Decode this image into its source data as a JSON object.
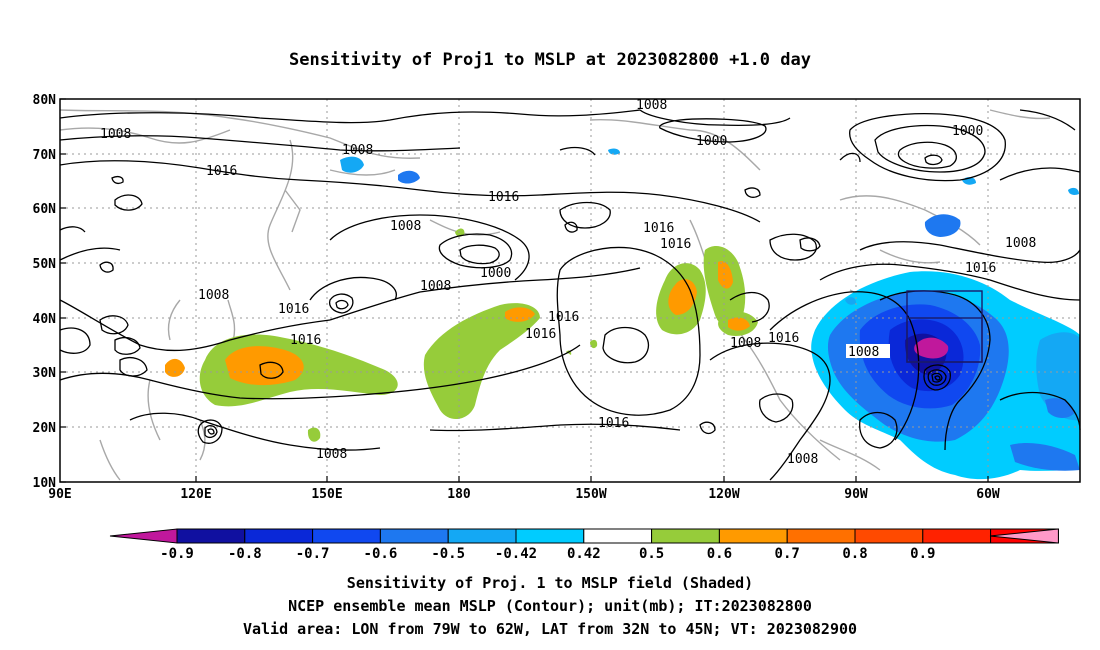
{
  "title": "Sensitivity of Proj1 to MSLP at 2023082800 +1.0 day",
  "lat_labels": [
    "80N",
    "70N",
    "60N",
    "50N",
    "40N",
    "30N",
    "20N",
    "10N"
  ],
  "lon_labels": [
    "90E",
    "120E",
    "150E",
    "180",
    "150W",
    "120W",
    "90W",
    "60W"
  ],
  "contour_labels": [
    "1008",
    "1008",
    "1008",
    "1016",
    "1016",
    "1008",
    "1000",
    "1008",
    "1000",
    "1016",
    "1016",
    "1016",
    "1016",
    "1008",
    "1016",
    "1000",
    "1008",
    "1016",
    "1016",
    "1016",
    "1008",
    "1016",
    "1008",
    "1016",
    "1008",
    "1008"
  ],
  "colorbar": {
    "colors": [
      "#c0189c",
      "#1010a0",
      "#0a28d8",
      "#1048f0",
      "#1e78f0",
      "#14a8f4",
      "#00ccff",
      "#ffffff",
      "#96cc3a",
      "#ff9a00",
      "#ff7000",
      "#ff4a00",
      "#ff2200",
      "#ff0000",
      "#ff99c8"
    ],
    "labels": [
      "-0.9",
      "-0.8",
      "-0.7",
      "-0.6",
      "-0.5",
      "-0.42",
      "0.42",
      "0.5",
      "0.6",
      "0.7",
      "0.8",
      "0.9"
    ]
  },
  "valid_box": {
    "lon_from": "79W",
    "lon_to": "62W",
    "lat_from": "32N",
    "lat_to": "45N"
  },
  "caption_line1": "Sensitivity of Proj. 1 to MSLP field (Shaded)",
  "caption_line2": "NCEP ensemble mean MSLP (Contour); unit(mb); IT:2023082800",
  "caption_line3": "Valid area: LON from 79W to 62W, LAT from 32N to 45N; VT: 2023082900"
}
